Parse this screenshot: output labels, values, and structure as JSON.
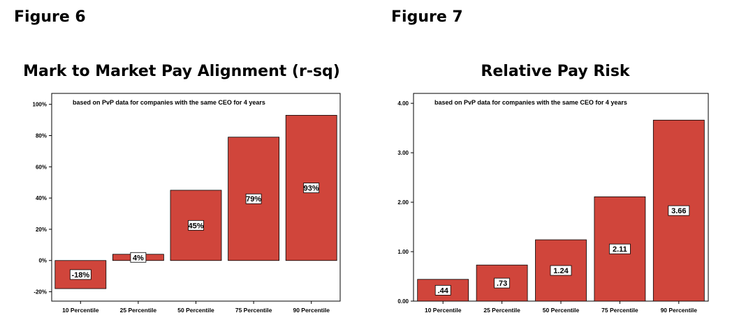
{
  "figures": [
    {
      "label": "Figure 6"
    },
    {
      "label": "Figure 7"
    }
  ],
  "chart_data": [
    {
      "type": "bar",
      "title": "Mark to Market Pay Alignment (r-sq)",
      "annotation": "based on PvP data for companies with the same CEO for 4 years",
      "categories": [
        "10 Percentile",
        "25 Percentile",
        "50 Percentile",
        "75 Percentile",
        "90 Percentile"
      ],
      "values": [
        -18,
        4,
        45,
        79,
        93
      ],
      "data_labels": [
        "-18%",
        "4%",
        "45%",
        "79%",
        "93%"
      ],
      "yticks": [
        -20,
        0,
        20,
        40,
        60,
        80,
        100
      ],
      "ytick_labels": [
        "-20%",
        "0%",
        "20%",
        "40%",
        "60%",
        "80%",
        "100%"
      ],
      "ylim": [
        -26,
        107
      ],
      "bar_color": "#d0453b"
    },
    {
      "type": "bar",
      "title": "Relative Pay Risk",
      "annotation": "based on PvP data for companies with the same CEO for 4 years",
      "categories": [
        "10 Percentile",
        "25 Percentile",
        "50 Percentile",
        "75 Percentile",
        "90 Percentile"
      ],
      "values": [
        0.44,
        0.73,
        1.24,
        2.11,
        3.66
      ],
      "data_labels": [
        ".44",
        ".73",
        "1.24",
        "2.11",
        "3.66"
      ],
      "yticks": [
        0,
        1,
        2,
        3,
        4
      ],
      "ytick_labels": [
        "0.00",
        "1.00",
        "2.00",
        "3.00",
        "4.00"
      ],
      "ylim": [
        0,
        4.2
      ],
      "bar_color": "#d0453b"
    }
  ]
}
